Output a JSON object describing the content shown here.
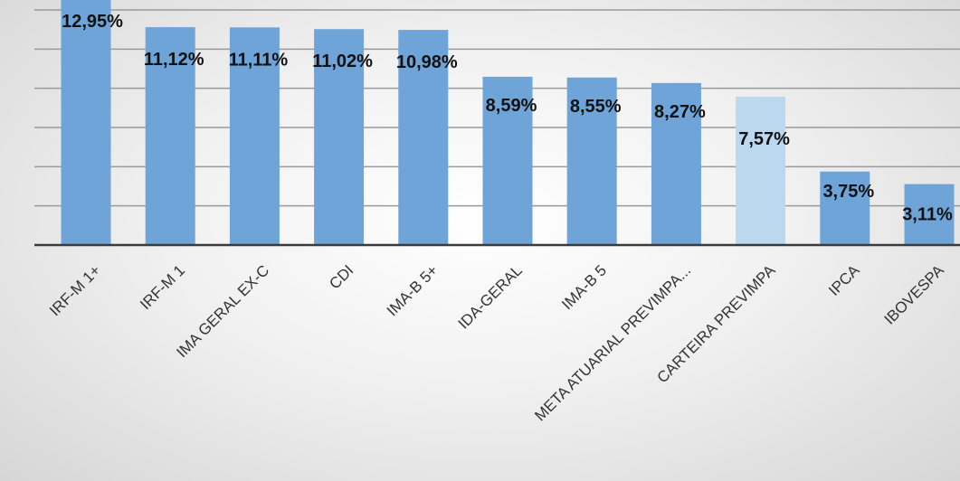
{
  "chart_data": {
    "type": "bar",
    "categories": [
      "IRF-M 1+",
      "IRF-M 1",
      "IMA GERAL EX-C",
      "CDI",
      "IMA-B 5+",
      "IDA-GERAL",
      "IMA-B 5",
      "META ATUARIAL PREVIMPA...",
      "CARTEIRA PREVIMPA",
      "IPCA",
      "IBOVESPA"
    ],
    "values": [
      12.95,
      11.12,
      11.11,
      11.02,
      10.98,
      8.59,
      8.55,
      8.27,
      7.57,
      3.75,
      3.11
    ],
    "data_labels": [
      "12,95%",
      "11,12%",
      "11,11%",
      "11,02%",
      "10,98%",
      "8,59%",
      "8,55%",
      "8,27%",
      "7,57%",
      "3,75%",
      "3,11%"
    ],
    "title": "",
    "xlabel": "",
    "ylabel": "",
    "ylim": [
      0,
      12
    ],
    "grid": true,
    "colors": {
      "bar": "#6fa4d8",
      "highlight_bar": "#bcd8f0",
      "gridline": "#9a9a9a",
      "axis": "#3a3a3a"
    },
    "highlight_index": 8
  }
}
